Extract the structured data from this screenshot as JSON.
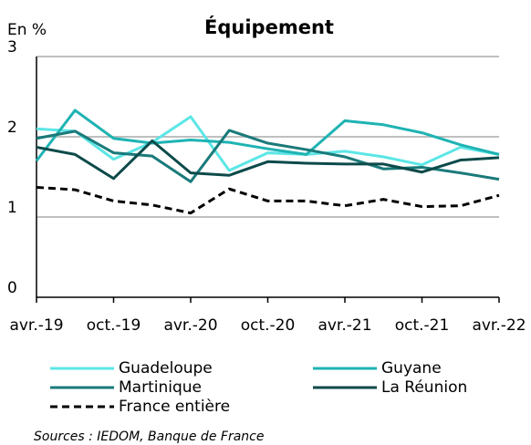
{
  "chart_data": {
    "type": "line",
    "title": "Équipement",
    "y_label": "En %",
    "source": "Sources : IEDOM, Banque de France",
    "categories": [
      "avr.-19",
      null,
      "oct.-19",
      null,
      "avr.-20",
      null,
      "oct.-20",
      null,
      "avr.-21",
      null,
      "oct.-21",
      null,
      "avr.-22"
    ],
    "ylim": [
      0,
      3
    ],
    "yticks": [
      0,
      1,
      2,
      3
    ],
    "grid": true,
    "series": [
      {
        "name": "Guadeloupe",
        "color": "#5ce6e6",
        "values": [
          2.1,
          2.07,
          1.72,
          1.93,
          2.25,
          1.58,
          1.8,
          1.78,
          1.82,
          1.75,
          1.65,
          1.87,
          1.78
        ]
      },
      {
        "name": "Guyane",
        "color": "#1fb3b3",
        "values": [
          1.7,
          2.33,
          1.98,
          1.92,
          1.96,
          1.93,
          1.85,
          1.78,
          2.2,
          2.15,
          2.05,
          1.9,
          1.78
        ]
      },
      {
        "name": "Martinique",
        "color": "#1a7a7a",
        "values": [
          1.98,
          2.07,
          1.8,
          1.76,
          1.44,
          2.08,
          1.92,
          1.84,
          1.75,
          1.6,
          1.62,
          1.55,
          1.47
        ]
      },
      {
        "name": "La Réunion",
        "color": "#0d4a4a",
        "values": [
          1.87,
          1.78,
          1.48,
          1.95,
          1.55,
          1.52,
          1.69,
          1.67,
          1.66,
          1.66,
          1.56,
          1.71,
          1.74
        ]
      },
      {
        "name": "France entière",
        "color": "#000000",
        "dashed": true,
        "values": [
          1.37,
          1.34,
          1.2,
          1.15,
          1.05,
          1.35,
          1.2,
          1.2,
          1.14,
          1.22,
          1.13,
          1.14,
          1.27
        ]
      }
    ]
  }
}
